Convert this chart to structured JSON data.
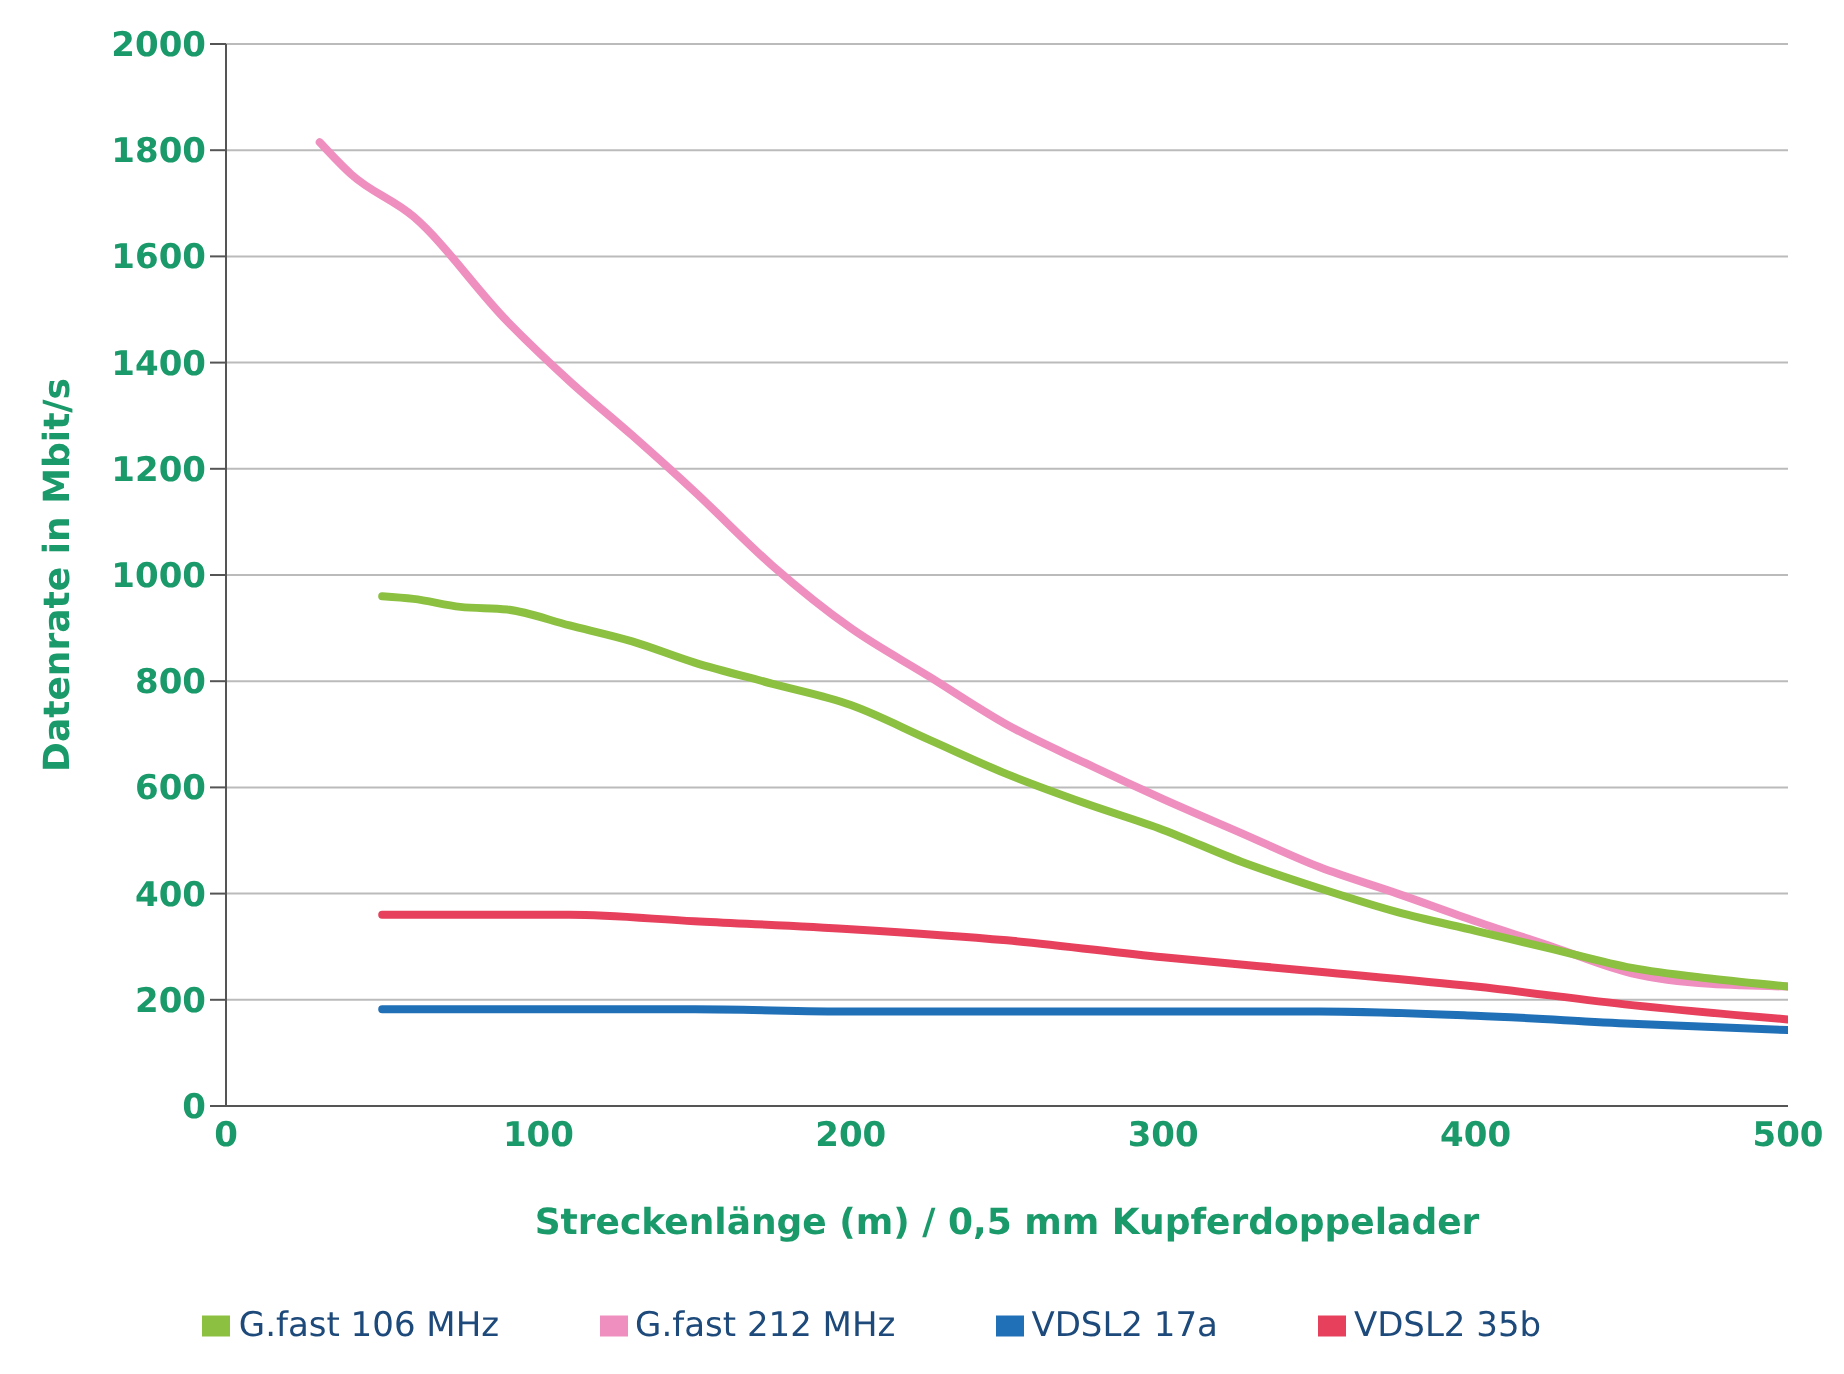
{
  "chart_data": {
    "type": "line",
    "xlabel": "Streckenlänge (m) / 0,5 mm Kupferdoppelader",
    "ylabel": "Datenrate in Mbit/s",
    "xlim": [
      0,
      500
    ],
    "xticks": [
      0,
      100,
      200,
      300,
      400,
      500
    ],
    "ylim": [
      0,
      2000
    ],
    "yticks": [
      0,
      200,
      400,
      600,
      800,
      1000,
      1200,
      1400,
      1600,
      1800,
      2000
    ],
    "grid": "y",
    "legend": "bottom",
    "marker": "none",
    "line_style": "solid",
    "series": [
      {
        "name": "G.fast 212 MHz",
        "color": "#ef8fbf",
        "x": [
          30,
          40,
          60,
          90,
          110,
          130,
          150,
          175,
          200,
          225,
          250,
          275,
          300,
          325,
          350,
          375,
          400,
          425,
          450,
          475,
          500
        ],
        "values": [
          1815,
          1755,
          1675,
          1478,
          1365,
          1263,
          1157,
          1017,
          900,
          809,
          718,
          646,
          578,
          514,
          450,
          400,
          348,
          299,
          250,
          230,
          225
        ]
      },
      {
        "name": "G.fast 106 MHz",
        "color": "#8cc040",
        "x": [
          50,
          60,
          75,
          90,
          110,
          130,
          150,
          175,
          200,
          225,
          250,
          275,
          300,
          325,
          350,
          375,
          400,
          425,
          450,
          475,
          500
        ],
        "values": [
          960,
          955,
          940,
          935,
          905,
          875,
          835,
          795,
          755,
          690,
          625,
          570,
          520,
          460,
          410,
          365,
          330,
          295,
          260,
          240,
          225
        ]
      },
      {
        "name": "VDSL2 35b",
        "color": "#e6405c",
        "x": [
          50,
          110,
          150,
          200,
          250,
          300,
          350,
          400,
          450,
          500
        ],
        "values": [
          360,
          360,
          348,
          333,
          312,
          280,
          253,
          225,
          190,
          163
        ]
      },
      {
        "name": "VDSL2 17a",
        "color": "#2070b8",
        "x": [
          50,
          150,
          200,
          250,
          300,
          350,
          400,
          450,
          500
        ],
        "values": [
          182,
          182,
          178,
          178,
          178,
          178,
          170,
          155,
          143
        ]
      }
    ]
  }
}
